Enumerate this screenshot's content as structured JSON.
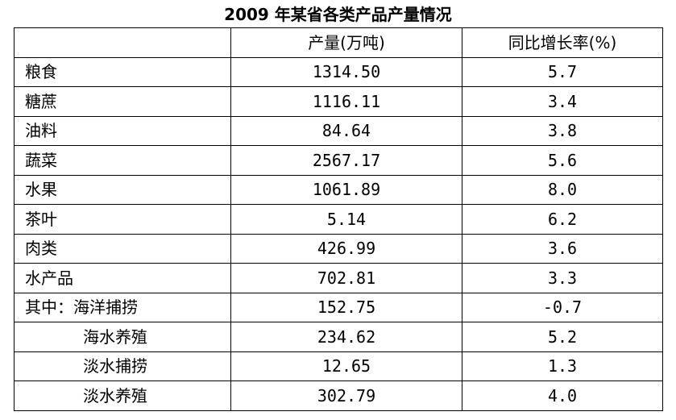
{
  "title": "2009 年某省各类产品产量情况",
  "header": {
    "category": "",
    "output": "产量(万吨)",
    "growth": "同比增长率(%)"
  },
  "rows": [
    {
      "name": "粮食",
      "output": "1314.50",
      "growth": "5.7",
      "indent": false
    },
    {
      "name": "糖蔗",
      "output": "1116.11",
      "growth": "3.4",
      "indent": false
    },
    {
      "name": "油料",
      "output": "84.64",
      "growth": "3.8",
      "indent": false
    },
    {
      "name": "蔬菜",
      "output": "2567.17",
      "growth": "5.6",
      "indent": false
    },
    {
      "name": "水果",
      "output": "1061.89",
      "growth": "8.0",
      "indent": false
    },
    {
      "name": "茶叶",
      "output": "5.14",
      "growth": "6.2",
      "indent": false
    },
    {
      "name": "肉类",
      "output": "426.99",
      "growth": "3.6",
      "indent": false
    },
    {
      "name": "水产品",
      "output": "702.81",
      "growth": "3.3",
      "indent": false
    },
    {
      "name": "其中：海洋捕捞",
      "output": "152.75",
      "growth": "-0.7",
      "indent": false
    },
    {
      "name": "海水养殖",
      "output": "234.62",
      "growth": "5.2",
      "indent": true
    },
    {
      "name": "淡水捕捞",
      "output": "12.65",
      "growth": "1.3",
      "indent": true
    },
    {
      "name": "淡水养殖",
      "output": "302.79",
      "growth": "4.0",
      "indent": true
    }
  ]
}
